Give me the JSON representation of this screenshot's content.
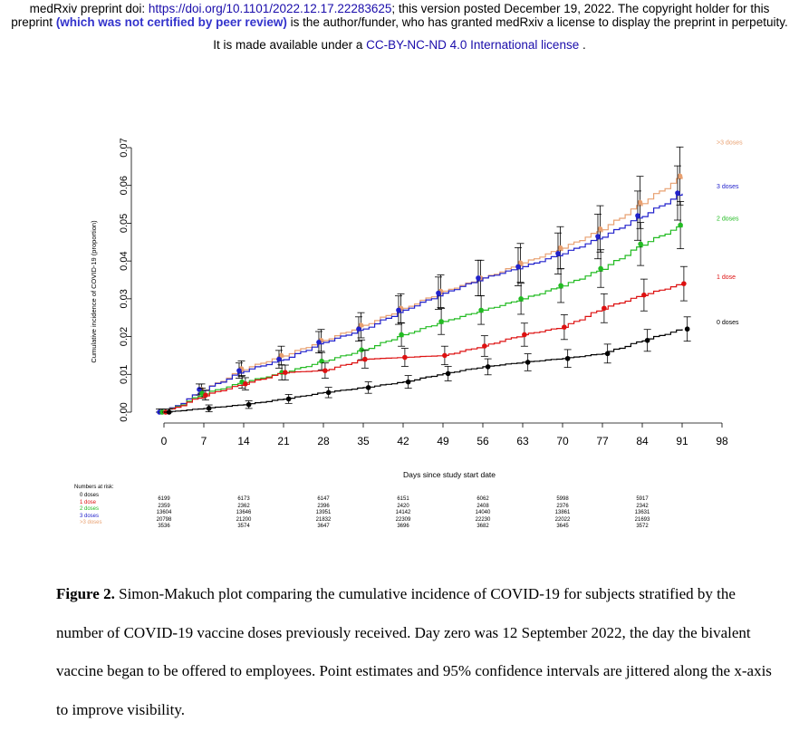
{
  "header": {
    "line1_prefix": "medRxiv preprint doi: ",
    "line1_doi": "https://doi.org/10.1101/2022.12.17.22283625",
    "line1_suffix": "; this version posted December 19, 2022. The copyright holder for this",
    "line2_prefix": "preprint ",
    "line2_bold": "(which was not certified by peer review)",
    "line2_suffix": " is the author/funder, who has granted medRxiv a license to display the preprint in perpetuity.",
    "line3_prefix": "It is made available under a ",
    "line3_license": "CC-BY-NC-ND 4.0 International license",
    "line3_suffix": " ."
  },
  "colors": {
    "0 doses": "#000000",
    "1 dose": "#dd1111",
    "2 doses": "#22bb22",
    "3 doses": "#2222cc",
    ">3 doses": "#e8a070"
  },
  "chart_data": {
    "type": "line",
    "xlabel": "Days since study start date",
    "ylabel": "Cumulative incidence of COVID-19 (proportion)",
    "xlim": [
      0,
      98
    ],
    "ylim": [
      0,
      0.07
    ],
    "x_ticks": [
      "0",
      "7",
      "14",
      "21",
      "28",
      "35",
      "42",
      "49",
      "56",
      "63",
      "70",
      "77",
      "84",
      "91",
      "98"
    ],
    "y_ticks": [
      "0.00",
      "0.01",
      "0.02",
      "0.03",
      "0.04",
      "0.05",
      "0.06",
      "0.07"
    ],
    "series": [
      {
        "name": "0 doses",
        "label": "0 doses",
        "x": [
          0,
          7,
          14,
          21,
          28,
          35,
          42,
          49,
          56,
          63,
          70,
          77,
          84,
          91
        ],
        "y": [
          0.0,
          0.001,
          0.002,
          0.0035,
          0.0052,
          0.0065,
          0.008,
          0.0102,
          0.012,
          0.0132,
          0.0142,
          0.0155,
          0.019,
          0.022
        ]
      },
      {
        "name": "1 dose",
        "label": "1 dose",
        "x": [
          0,
          7,
          14,
          21,
          28,
          35,
          42,
          49,
          56,
          63,
          70,
          77,
          84,
          91
        ],
        "y": [
          0.0,
          0.0045,
          0.0075,
          0.0105,
          0.011,
          0.014,
          0.0145,
          0.015,
          0.0175,
          0.0205,
          0.0225,
          0.0275,
          0.031,
          0.034
        ]
      },
      {
        "name": "2 doses",
        "label": "2 doses",
        "x": [
          0,
          7,
          14,
          21,
          28,
          35,
          42,
          49,
          56,
          63,
          70,
          77,
          84,
          91
        ],
        "y": [
          0.0,
          0.005,
          0.008,
          0.0105,
          0.0135,
          0.0165,
          0.0205,
          0.024,
          0.027,
          0.03,
          0.0335,
          0.038,
          0.0445,
          0.0495
        ]
      },
      {
        "name": "3 doses",
        "label": "3 doses",
        "x": [
          0,
          7,
          14,
          21,
          28,
          35,
          42,
          49,
          56,
          63,
          70,
          77,
          84,
          91
        ],
        "y": [
          0.0,
          0.006,
          0.011,
          0.014,
          0.0185,
          0.022,
          0.027,
          0.0315,
          0.0355,
          0.0385,
          0.042,
          0.0465,
          0.052,
          0.058
        ]
      },
      {
        "name": ">3 doses",
        "label": ">3 doses",
        "x": [
          0,
          7,
          14,
          21,
          28,
          35,
          42,
          49,
          56,
          63,
          70,
          77,
          84,
          91
        ],
        "y": [
          0.0,
          0.006,
          0.0115,
          0.015,
          0.019,
          0.023,
          0.0275,
          0.032,
          0.0355,
          0.0395,
          0.0435,
          0.0485,
          0.0555,
          0.0625
        ]
      }
    ]
  },
  "risk_table": {
    "title": "Numbers at risk:",
    "labels": [
      "0 doses",
      "1 dose",
      "2 doses",
      "3 doses",
      ">3 doses"
    ],
    "columns": [
      [
        "6199",
        "2359",
        "13604",
        "20798",
        "3536"
      ],
      [
        "6173",
        "2362",
        "13646",
        "21200",
        "3574"
      ],
      [
        "6147",
        "2396",
        "13951",
        "21832",
        "3647"
      ],
      [
        "6151",
        "2420",
        "14142",
        "22309",
        "3696"
      ],
      [
        "6062",
        "2408",
        "14040",
        "22230",
        "3682"
      ],
      [
        "5998",
        "2376",
        "13861",
        "22022",
        "3645"
      ],
      [
        "5917",
        "2342",
        "13631",
        "21693",
        "3572"
      ]
    ]
  },
  "caption": {
    "label": "Figure 2.",
    "text": " Simon-Makuch plot comparing the cumulative incidence of COVID-19 for subjects stratified by the number of COVID-19 vaccine doses previously received. Day zero was 12 September 2022, the day the bivalent vaccine began to be offered to employees. Point estimates and 95% confidence intervals are jittered along the x-axis to improve visibility."
  }
}
